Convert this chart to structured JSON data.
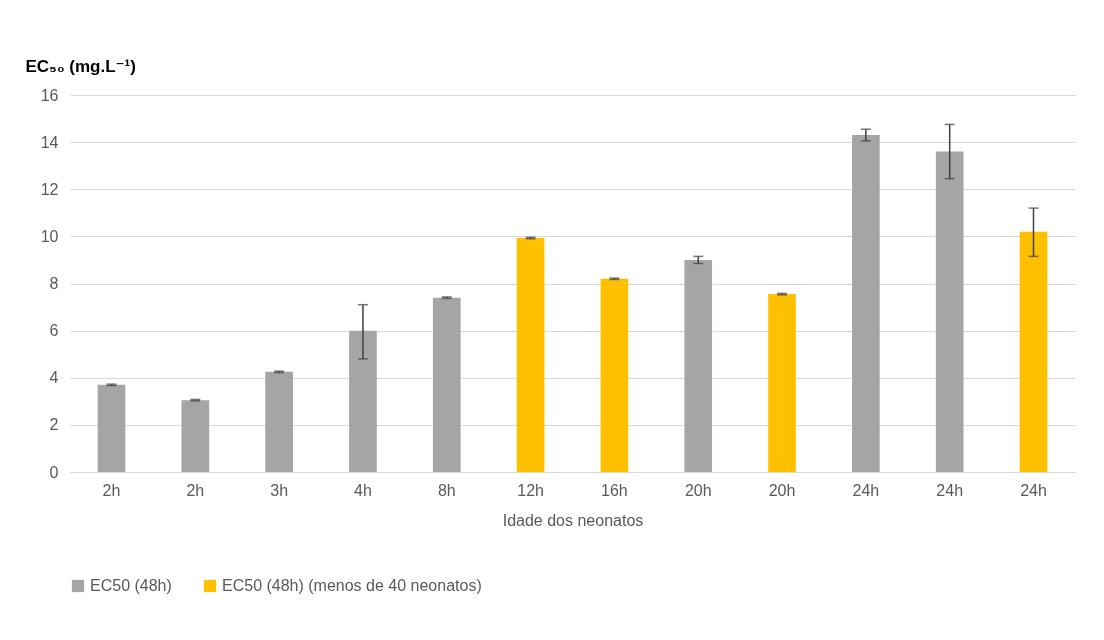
{
  "chart_data": {
    "type": "bar",
    "xlabel": "Idade dos neonatos",
    "ylabel": "EC₅₀ (mg.L⁻¹)",
    "categories": [
      "2h",
      "2h",
      "3h",
      "4h",
      "8h",
      "12h",
      "16h",
      "20h",
      "20h",
      "24h",
      "24h",
      "24h"
    ],
    "series": [
      {
        "name": "EC50 (48h)",
        "color": "#a5a5a5",
        "values": [
          3.7,
          3.05,
          4.25,
          6.0,
          7.4,
          null,
          null,
          9.0,
          null,
          14.3,
          13.6,
          null
        ],
        "errors": [
          0.03,
          0.03,
          0.03,
          [
            4.8,
            7.1
          ],
          0.03,
          null,
          null,
          0.15,
          null,
          0.25,
          [
            12.45,
            14.75
          ],
          null
        ]
      },
      {
        "name": "EC50 (48h) (menos de 40 neonatos)",
        "color": "#ffc000",
        "values": [
          null,
          null,
          null,
          null,
          null,
          9.93,
          8.2,
          null,
          7.55,
          null,
          null,
          10.2
        ],
        "errors": [
          null,
          null,
          null,
          null,
          null,
          0.03,
          0.03,
          null,
          0.03,
          null,
          null,
          [
            9.15,
            11.2
          ]
        ]
      }
    ],
    "ylim": [
      0,
      16
    ],
    "yticks": [
      0,
      2,
      4,
      6,
      8,
      10,
      12,
      14,
      16
    ],
    "grid": "y",
    "legend": "bottom"
  }
}
